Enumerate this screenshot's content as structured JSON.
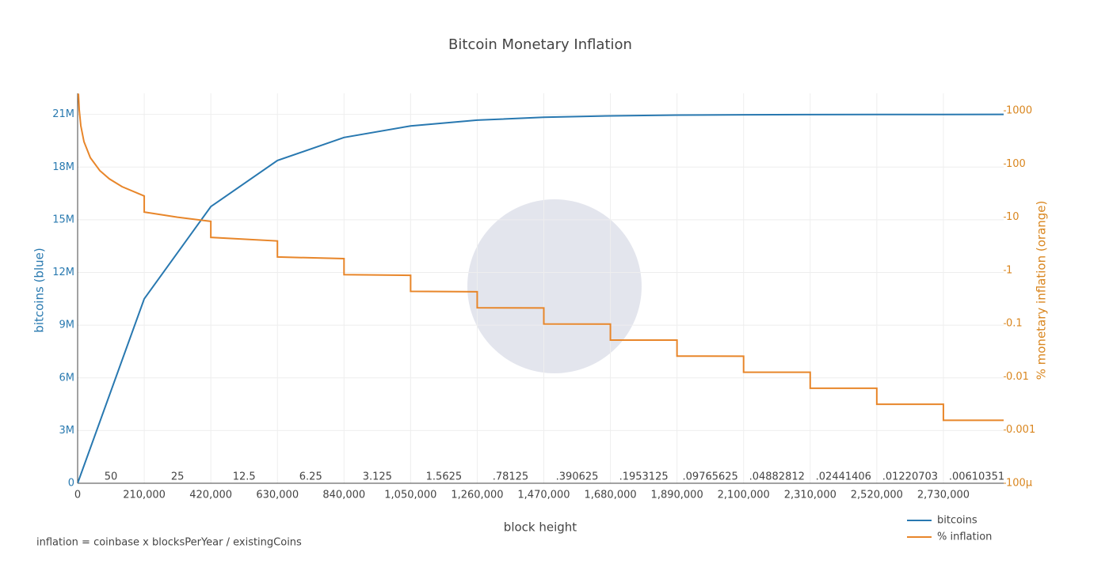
{
  "chart_data": {
    "type": "line",
    "title": "Bitcoin Monetary Inflation",
    "x_label": "block height",
    "y_label": "bitcoins (blue)",
    "y2_label": "% monetary inflation (orange)",
    "footnote": "inflation = coinbase x blocksPerYear / existingCoins",
    "xlim": [
      0,
      2920000
    ],
    "xticks": [
      0,
      {
        "value": 210000,
        "label": "210,000"
      },
      {
        "value": 420000,
        "label": "420,000"
      },
      {
        "value": 630000,
        "label": "630,000"
      },
      {
        "value": 840000,
        "label": "840,000"
      },
      {
        "value": 1050000,
        "label": "1,050,000"
      },
      {
        "value": 1260000,
        "label": "1,260,000"
      },
      {
        "value": 1470000,
        "label": "1,470,000"
      },
      {
        "value": 1680000,
        "label": "1,680,000"
      },
      {
        "value": 1890000,
        "label": "1,890,000"
      },
      {
        "value": 2100000,
        "label": "2,100,000"
      },
      {
        "value": 2310000,
        "label": "2,310,000"
      },
      {
        "value": 2520000,
        "label": "2,520,000"
      },
      {
        "value": 2730000,
        "label": "2,730,000"
      }
    ],
    "ylim": [
      0,
      22200000
    ],
    "yticks": [
      0,
      {
        "value": 3000000,
        "label": "3M"
      },
      {
        "value": 6000000,
        "label": "6M"
      },
      {
        "value": 9000000,
        "label": "9M"
      },
      {
        "value": 12000000,
        "label": "12M"
      },
      {
        "value": 15000000,
        "label": "15M"
      },
      {
        "value": 18000000,
        "label": "18M"
      },
      {
        "value": 21000000,
        "label": "21M"
      }
    ],
    "y2lim": [
      0.0001,
      2130
    ],
    "y2_log_scale": true,
    "y2ticks": [
      1000,
      100,
      10,
      1,
      0.1,
      0.01,
      0.001,
      {
        "value": 0.0001,
        "label": "100µ"
      }
    ],
    "grid": true,
    "legend_position": "bottom-right",
    "era_labels": [
      "50",
      "25",
      "12.5",
      "6.25",
      "3.125",
      "1.5625",
      ".78125",
      ".390625",
      ".1953125",
      ".09765625",
      ".04882812",
      ".02441406",
      ".01220703",
      ".00610351"
    ],
    "series": [
      {
        "name": "bitcoins",
        "color": "#2878b0",
        "x": [
          0,
          210000,
          420000,
          630000,
          840000,
          1050000,
          1260000,
          1470000,
          1680000,
          1890000,
          2100000,
          2310000,
          2520000,
          2730000,
          2920000
        ],
        "values": [
          0,
          10500000,
          15750000,
          18375000,
          19687500,
          20343750,
          20671875,
          20835938,
          20917969,
          20958984,
          20979492,
          20989746,
          20994873,
          20997437,
          20998700
        ]
      },
      {
        "name": "% inflation",
        "color": "#e8862a",
        "axis": "y2",
        "x": [
          2500,
          5000,
          10000,
          20000,
          40000,
          70000,
          100000,
          140000,
          210000,
          210000,
          315000,
          420000,
          420000,
          630000,
          630000,
          840000,
          840000,
          1050000,
          1050000,
          1260000,
          1260000,
          1470000,
          1470000,
          1680000,
          1680000,
          1890000,
          1890000,
          2100000,
          2100000,
          2310000,
          2310000,
          2520000,
          2520000,
          2730000,
          2730000,
          2920000
        ],
        "values": [
          2102.4,
          1051.2,
          525.6,
          262.8,
          131.4,
          75.09,
          52.56,
          37.54,
          25.03,
          12.514,
          10.011,
          8.343,
          4.171,
          3.576,
          1.788,
          1.669,
          0.8343,
          0.8074,
          0.4037,
          0.3973,
          0.19864,
          0.19708,
          0.09854,
          0.09815,
          0.049076,
          0.04898,
          0.02449,
          0.024466,
          0.012233,
          0.012227,
          0.0061135,
          0.006112,
          0.003056,
          0.0030556,
          0.0015278,
          0.0015277
        ]
      }
    ]
  }
}
